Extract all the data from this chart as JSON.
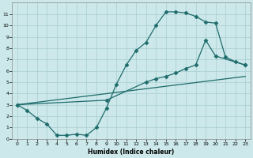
{
  "xlabel": "Humidex (Indice chaleur)",
  "bg_color": "#cce8ea",
  "grid_color": "#a8cdd0",
  "line_color": "#1e6b6b",
  "xlim": [
    -0.5,
    23.5
  ],
  "ylim": [
    0,
    12
  ],
  "xticks": [
    0,
    1,
    2,
    3,
    4,
    5,
    6,
    7,
    8,
    9,
    10,
    11,
    12,
    13,
    14,
    15,
    16,
    17,
    18,
    19,
    20,
    21,
    22,
    23
  ],
  "yticks": [
    0,
    1,
    2,
    3,
    4,
    5,
    6,
    7,
    8,
    9,
    10,
    11
  ],
  "line1_x": [
    0,
    1,
    2,
    3,
    4,
    5,
    6,
    7,
    8,
    9,
    10,
    11,
    12,
    13,
    14,
    15,
    16,
    17,
    18,
    19,
    20,
    21,
    22,
    23
  ],
  "line1_y": [
    3.0,
    2.5,
    1.8,
    1.3,
    0.3,
    0.3,
    0.4,
    0.3,
    1.0,
    2.7,
    4.8,
    6.5,
    7.8,
    8.5,
    10.0,
    11.2,
    11.2,
    11.1,
    10.8,
    10.3,
    10.2,
    7.2,
    6.8,
    6.5
  ],
  "line2_x": [
    0,
    23
  ],
  "line2_y": [
    3.0,
    5.5
  ],
  "line3_x": [
    0,
    9,
    13,
    14,
    15,
    16,
    17,
    18,
    19,
    20,
    23
  ],
  "line3_y": [
    3.0,
    3.4,
    5.0,
    5.3,
    5.5,
    5.8,
    6.2,
    6.5,
    8.7,
    7.3,
    6.5
  ],
  "marker": "D",
  "markersize": 2.5,
  "linewidth": 0.9
}
